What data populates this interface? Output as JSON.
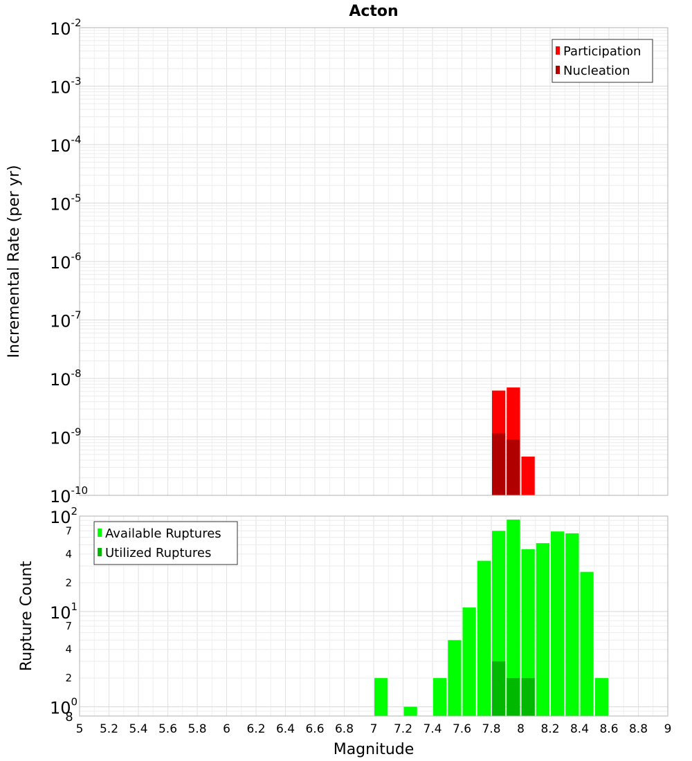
{
  "chart_data": [
    {
      "type": "bar",
      "title": "Acton",
      "ylabel": "Incremental Rate (per yr)",
      "xlabel": "",
      "yscale": "log",
      "ylim": [
        1e-10,
        0.01
      ],
      "xlim": [
        5,
        9
      ],
      "bin_width": 0.1,
      "x_ticks": [
        "5",
        "5.2",
        "5.4",
        "5.6",
        "5.8",
        "6",
        "6.2",
        "6.4",
        "6.6",
        "6.8",
        "7",
        "7.2",
        "7.4",
        "7.6",
        "7.8",
        "8",
        "8.2",
        "8.4",
        "8.6",
        "8.8",
        "9"
      ],
      "y_ticks": [
        {
          "value": 1e-10,
          "base": "10",
          "exp": "-10"
        },
        {
          "value": 1e-09,
          "base": "10",
          "exp": "-9"
        },
        {
          "value": 1e-08,
          "base": "10",
          "exp": "-8"
        },
        {
          "value": 1e-07,
          "base": "10",
          "exp": "-7"
        },
        {
          "value": 1e-06,
          "base": "10",
          "exp": "-6"
        },
        {
          "value": 1e-05,
          "base": "10",
          "exp": "-5"
        },
        {
          "value": 0.0001,
          "base": "10",
          "exp": "-4"
        },
        {
          "value": 0.001,
          "base": "10",
          "exp": "-3"
        },
        {
          "value": 0.01,
          "base": "10",
          "exp": "-2"
        }
      ],
      "legend_position": "top-right",
      "grid": true,
      "series": [
        {
          "name": "Participation",
          "color": "#ff0000",
          "x": [
            7.85,
            7.95,
            8.05
          ],
          "values": [
            6.2e-09,
            7e-09,
            4.6e-10
          ]
        },
        {
          "name": "Nucleation",
          "color": "#b00000",
          "x": [
            7.85,
            7.95
          ],
          "values": [
            1.15e-09,
            9e-10
          ]
        }
      ]
    },
    {
      "type": "bar",
      "title": "",
      "ylabel": "Rupture Count",
      "xlabel": "Magnitude",
      "yscale": "log",
      "ylim": [
        0.8,
        100
      ],
      "xlim": [
        5,
        9
      ],
      "bin_width": 0.1,
      "x_ticks": [
        "5",
        "5.2",
        "5.4",
        "5.6",
        "5.8",
        "6",
        "6.2",
        "6.4",
        "6.6",
        "6.8",
        "7",
        "7.2",
        "7.4",
        "7.6",
        "7.8",
        "8",
        "8.2",
        "8.4",
        "8.6",
        "8.8",
        "9"
      ],
      "y_major_ticks": [
        {
          "value": 1,
          "base": "10",
          "exp": "0"
        },
        {
          "value": 10,
          "base": "10",
          "exp": "1"
        },
        {
          "value": 100,
          "base": "10",
          "exp": "2"
        }
      ],
      "y_minor_ticks": [
        {
          "value": 0.8,
          "label": "8"
        },
        {
          "value": 2,
          "label": "2"
        },
        {
          "value": 4,
          "label": "4"
        },
        {
          "value": 7,
          "label": "7"
        },
        {
          "value": 20,
          "label": "2"
        },
        {
          "value": 40,
          "label": "4"
        },
        {
          "value": 70,
          "label": "7"
        }
      ],
      "legend_position": "top-left",
      "grid": true,
      "series": [
        {
          "name": "Available Ruptures",
          "color": "#00ff00",
          "x": [
            7.05,
            7.25,
            7.45,
            7.55,
            7.65,
            7.75,
            7.85,
            7.95,
            8.05,
            8.15,
            8.25,
            8.35,
            8.45,
            8.55
          ],
          "values": [
            2,
            1,
            2,
            5,
            11,
            34,
            70,
            92,
            45,
            52,
            69,
            66,
            26,
            2
          ]
        },
        {
          "name": "Utilized Ruptures",
          "color": "#00b800",
          "x": [
            7.85,
            7.95,
            8.05
          ],
          "values": [
            3,
            2,
            2
          ]
        }
      ]
    }
  ]
}
